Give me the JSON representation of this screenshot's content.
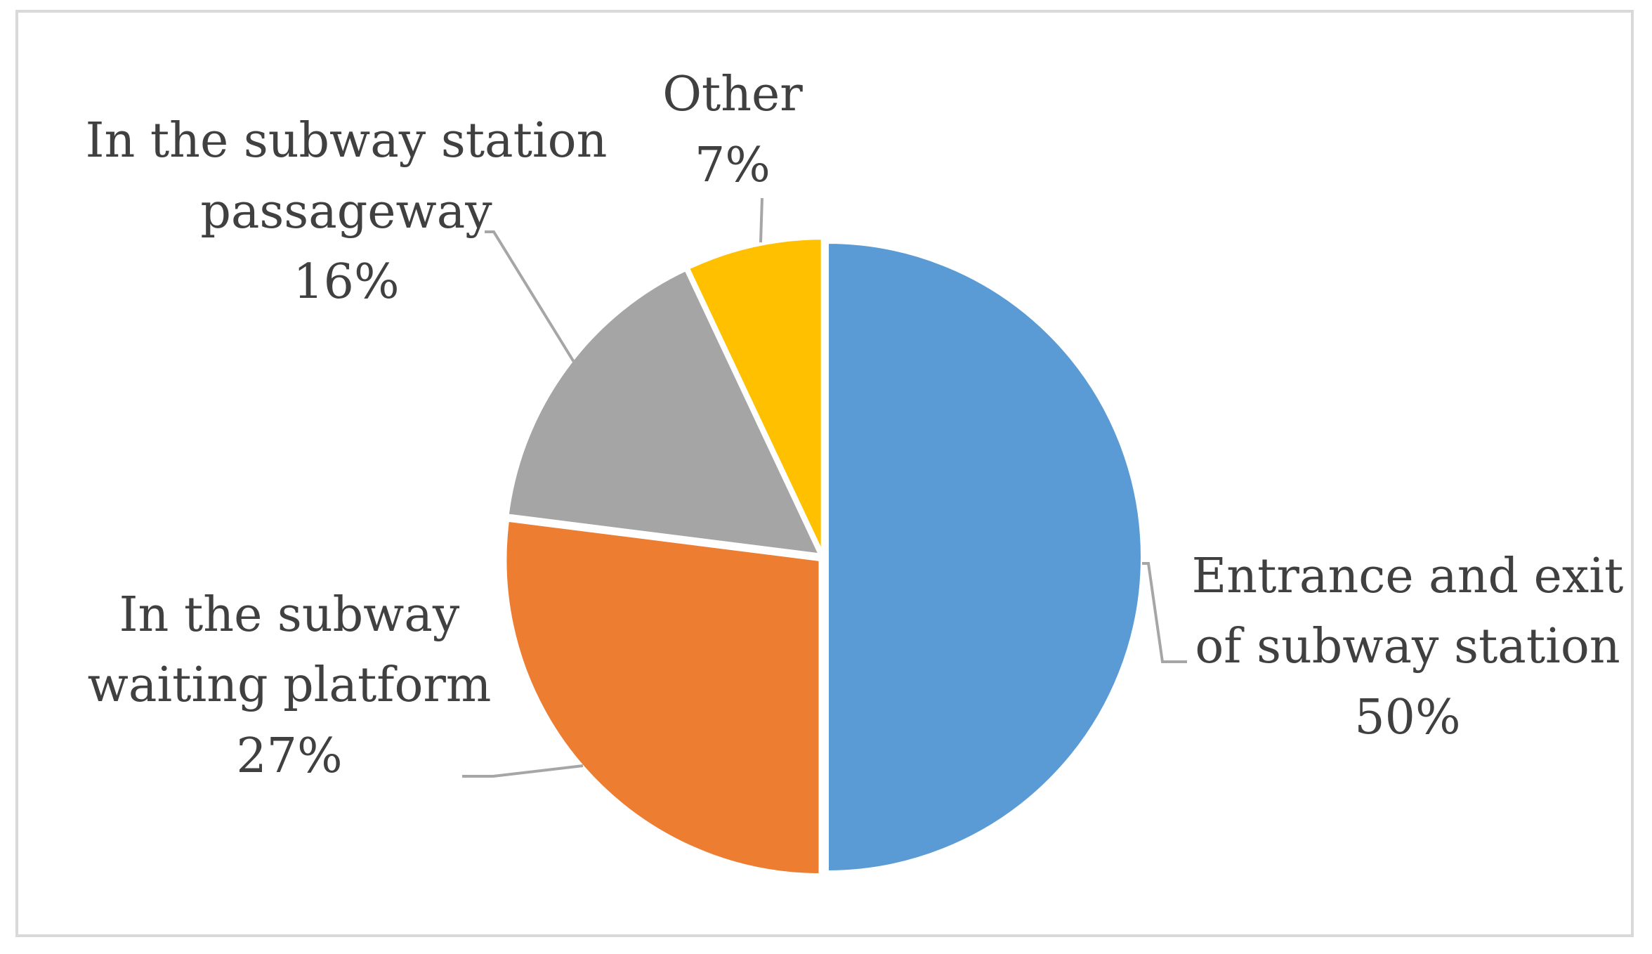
{
  "chart_data": {
    "type": "pie",
    "slices": [
      {
        "label_lines": [
          "Entrance and exit",
          "of subway station"
        ],
        "value": 50,
        "value_label": "50%",
        "color": "#5B9BD5"
      },
      {
        "label_lines": [
          "In the subway",
          "waiting platform"
        ],
        "value": 27,
        "value_label": "27%",
        "color": "#ED7D31"
      },
      {
        "label_lines": [
          "In the subway station",
          "passageway"
        ],
        "value": 16,
        "value_label": "16%",
        "color": "#A5A5A5"
      },
      {
        "label_lines": [
          "Other"
        ],
        "value": 7,
        "value_label": "7%",
        "color": "#FFC000"
      }
    ],
    "start_angle": "12 o'clock",
    "direction": "clockwise",
    "legend": "none"
  }
}
